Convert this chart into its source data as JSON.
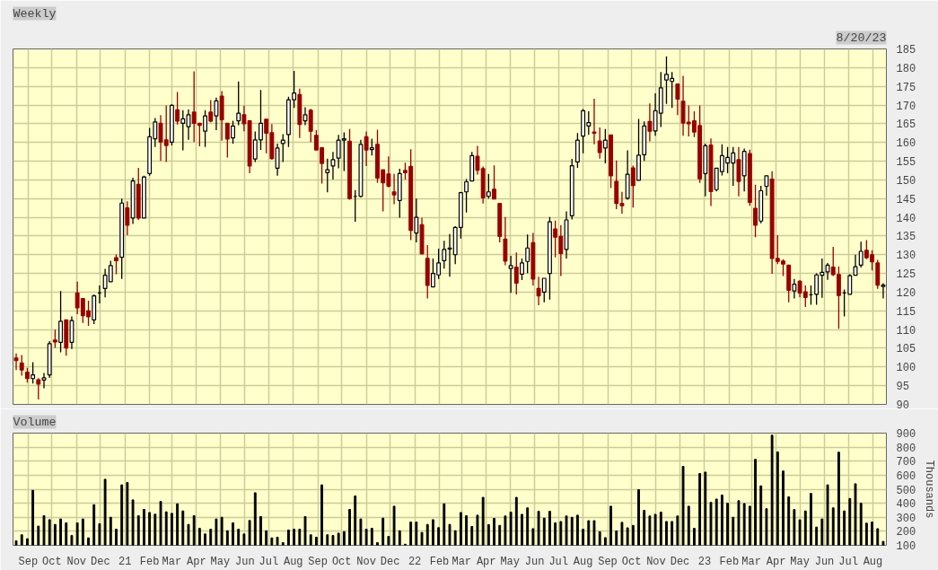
{
  "chart_data": [
    {
      "type": "candlestick",
      "title": "Weekly",
      "annotations": [
        "8/20/23"
      ],
      "x": [
        "2020-08-17",
        "2020-08-24",
        "2020-08-31",
        "2020-09-07",
        "2020-09-14",
        "2020-09-21",
        "2020-09-28",
        "2020-10-05",
        "2020-10-12",
        "2020-10-19",
        "2020-10-26",
        "2020-11-02",
        "2020-11-09",
        "2020-11-16",
        "2020-11-23",
        "2020-11-30",
        "2020-12-07",
        "2020-12-14",
        "2020-12-21",
        "2020-12-28",
        "2021-01-04",
        "2021-01-11",
        "2021-01-18",
        "2021-01-25",
        "2021-02-01",
        "2021-02-08",
        "2021-02-15",
        "2021-02-22",
        "2021-03-01",
        "2021-03-08",
        "2021-03-15",
        "2021-03-22",
        "2021-03-29",
        "2021-04-05",
        "2021-04-12",
        "2021-04-19",
        "2021-04-26",
        "2021-05-03",
        "2021-05-10",
        "2021-05-17",
        "2021-05-24",
        "2021-05-31",
        "2021-06-07",
        "2021-06-14",
        "2021-06-21",
        "2021-06-28",
        "2021-07-05",
        "2021-07-12",
        "2021-07-19",
        "2021-07-26",
        "2021-08-02",
        "2021-08-09",
        "2021-08-16",
        "2021-08-23",
        "2021-08-30",
        "2021-09-06",
        "2021-09-13",
        "2021-09-20",
        "2021-09-27",
        "2021-10-04",
        "2021-10-11",
        "2021-10-18",
        "2021-10-25",
        "2021-11-01",
        "2021-11-08",
        "2021-11-15",
        "2021-11-22",
        "2021-11-29",
        "2021-12-06",
        "2021-12-13",
        "2021-12-20",
        "2021-12-27",
        "2022-01-03",
        "2022-01-10",
        "2022-01-17",
        "2022-01-24",
        "2022-01-31",
        "2022-02-07",
        "2022-02-14",
        "2022-02-21",
        "2022-02-28",
        "2022-03-07",
        "2022-03-14",
        "2022-03-21",
        "2022-03-28",
        "2022-04-04",
        "2022-04-11",
        "2022-04-18",
        "2022-04-25",
        "2022-05-02",
        "2022-05-09",
        "2022-05-16",
        "2022-05-23",
        "2022-05-30",
        "2022-06-06",
        "2022-06-13",
        "2022-06-20",
        "2022-06-27",
        "2022-07-04",
        "2022-07-11",
        "2022-07-18",
        "2022-07-25",
        "2022-08-01",
        "2022-08-08",
        "2022-08-15",
        "2022-08-22",
        "2022-08-29",
        "2022-09-05",
        "2022-09-12",
        "2022-09-19",
        "2022-09-26",
        "2022-10-03",
        "2022-10-10",
        "2022-10-17",
        "2022-10-24",
        "2022-10-31",
        "2022-11-07",
        "2022-11-14",
        "2022-11-21",
        "2022-11-28",
        "2022-12-05",
        "2022-12-12",
        "2022-12-19",
        "2022-12-26",
        "2023-01-02",
        "2023-01-09",
        "2023-01-16",
        "2023-01-23",
        "2023-01-30",
        "2023-02-06",
        "2023-02-13",
        "2023-02-20",
        "2023-02-27",
        "2023-03-06",
        "2023-03-13",
        "2023-03-20",
        "2023-03-27",
        "2023-04-03",
        "2023-04-10",
        "2023-04-17",
        "2023-04-24",
        "2023-05-01",
        "2023-05-08",
        "2023-05-15",
        "2023-05-22",
        "2023-05-29",
        "2023-06-05",
        "2023-06-12",
        "2023-06-19",
        "2023-06-26",
        "2023-07-03",
        "2023-07-10",
        "2023-07-17",
        "2023-07-24",
        "2023-07-31",
        "2023-08-07",
        "2023-08-14"
      ],
      "ohlc": [
        [
          102.4,
          103.6,
          99.2,
          101.7
        ],
        [
          101.1,
          103.2,
          97.7,
          99.2
        ],
        [
          98.6,
          99.8,
          95.8,
          96.9
        ],
        [
          96.9,
          101.3,
          95.6,
          97.9
        ],
        [
          96.6,
          97.0,
          91.3,
          95.4
        ],
        [
          96.5,
          98.4,
          94.3,
          97.1
        ],
        [
          97.9,
          106.9,
          97.1,
          106.2
        ],
        [
          107.2,
          110.0,
          105.1,
          106.7
        ],
        [
          106.6,
          120.3,
          103.9,
          112.2
        ],
        [
          112.6,
          112.6,
          103.0,
          105.1
        ],
        [
          106.6,
          113.5,
          104.8,
          112.4
        ],
        [
          119.8,
          122.8,
          114.1,
          115.8
        ],
        [
          118.3,
          118.3,
          111.8,
          113.7
        ],
        [
          115.0,
          117.7,
          111.0,
          113.4
        ],
        [
          112.6,
          119.4,
          111.5,
          119.0
        ],
        [
          119.8,
          121.8,
          117.0,
          119.8
        ],
        [
          121.0,
          126.2,
          118.6,
          124.5
        ],
        [
          122.8,
          128.4,
          122.8,
          127.1
        ],
        [
          129.2,
          130.1,
          124.8,
          128.4
        ],
        [
          129.3,
          145.0,
          123.5,
          143.8
        ],
        [
          142.5,
          144.3,
          135.2,
          137.9
        ],
        [
          139.8,
          150.6,
          138.2,
          149.7
        ],
        [
          148.8,
          153.2,
          139.3,
          139.8
        ],
        [
          139.8,
          151.1,
          139.8,
          150.8
        ],
        [
          151.7,
          163.9,
          151.1,
          161.5
        ],
        [
          161.0,
          166.5,
          158.8,
          165.5
        ],
        [
          165.1,
          167.3,
          155.1,
          160.1
        ],
        [
          160.7,
          169.9,
          154.8,
          159.2
        ],
        [
          160.1,
          170.2,
          159.2,
          169.9
        ],
        [
          168.7,
          173.5,
          164.8,
          165.7
        ],
        [
          165.1,
          168.6,
          157.9,
          166.3
        ],
        [
          164.2,
          168.8,
          160.7,
          167.4
        ],
        [
          168.1,
          179.0,
          160.1,
          165.1
        ],
        [
          165.1,
          165.1,
          159.0,
          164.6
        ],
        [
          163.0,
          168.6,
          158.8,
          167.1
        ],
        [
          168.1,
          171.3,
          165.4,
          165.7
        ],
        [
          167.1,
          172.0,
          163.3,
          171.1
        ],
        [
          172.4,
          173.7,
          160.5,
          166.1
        ],
        [
          165.1,
          165.1,
          156.0,
          160.9
        ],
        [
          161.2,
          165.8,
          159.7,
          164.4
        ],
        [
          165.8,
          176.3,
          164.6,
          167.8
        ],
        [
          167.4,
          169.8,
          163.0,
          165.0
        ],
        [
          165.8,
          166.0,
          151.8,
          153.7
        ],
        [
          155.6,
          162.9,
          154.8,
          160.7
        ],
        [
          160.7,
          174.0,
          158.0,
          165.1
        ],
        [
          166.2,
          166.2,
          157.1,
          162.5
        ],
        [
          162.6,
          164.9,
          155.4,
          155.7
        ],
        [
          153.1,
          159.7,
          151.1,
          158.5
        ],
        [
          159.7,
          162.2,
          154.8,
          160.6
        ],
        [
          162.1,
          172.2,
          158.8,
          171.4
        ],
        [
          171.4,
          179.1,
          169.2,
          173.2
        ],
        [
          172.8,
          174.4,
          161.2,
          164.8
        ],
        [
          165.8,
          169.4,
          164.6,
          167.4
        ],
        [
          168.6,
          169.0,
          160.1,
          163.0
        ],
        [
          161.9,
          163.3,
          158.0,
          158.0
        ],
        [
          158.6,
          158.8,
          149.0,
          154.4
        ],
        [
          151.9,
          155.7,
          146.7,
          152.7
        ],
        [
          153.7,
          157.5,
          150.1,
          155.4
        ],
        [
          155.8,
          162.0,
          153.1,
          160.6
        ],
        [
          160.6,
          162.7,
          152.4,
          161.0
        ],
        [
          160.3,
          163.6,
          144.7,
          145.0
        ],
        [
          145.6,
          147.3,
          138.8,
          145.6
        ],
        [
          145.6,
          160.7,
          145.3,
          159.5
        ],
        [
          161.5,
          162.9,
          153.7,
          158.0
        ],
        [
          158.1,
          161.0,
          156.5,
          158.6
        ],
        [
          159.5,
          163.4,
          149.2,
          150.5
        ],
        [
          152.7,
          152.7,
          141.6,
          149.2
        ],
        [
          151.6,
          156.3,
          148.0,
          148.3
        ],
        [
          146.8,
          151.6,
          143.5,
          146.0
        ],
        [
          144.5,
          153.0,
          139.9,
          151.7
        ],
        [
          152.5,
          154.6,
          150.1,
          151.9
        ],
        [
          153.6,
          158.2,
          133.9,
          136.5
        ],
        [
          135.8,
          145.0,
          133.3,
          140.0
        ],
        [
          138.0,
          139.9,
          130.2,
          130.2
        ],
        [
          129.0,
          132.6,
          118.3,
          121.8
        ],
        [
          121.4,
          129.0,
          121.4,
          125.0
        ],
        [
          124.6,
          131.6,
          123.5,
          127.8
        ],
        [
          128.4,
          133.7,
          126.3,
          131.4
        ],
        [
          131.5,
          135.5,
          124.1,
          131.8
        ],
        [
          130.0,
          137.6,
          127.5,
          137.3
        ],
        [
          137.3,
          146.8,
          134.3,
          146.6
        ],
        [
          146.8,
          150.2,
          141.3,
          149.5
        ],
        [
          149.7,
          157.5,
          149.6,
          156.5
        ],
        [
          156.3,
          159.1,
          151.4,
          152.6
        ],
        [
          153.0,
          153.6,
          143.7,
          145.2
        ],
        [
          145.6,
          151.6,
          145.0,
          146.8
        ],
        [
          147.5,
          153.9,
          144.9,
          144.9
        ],
        [
          143.7,
          143.7,
          133.3,
          134.9
        ],
        [
          134.2,
          140.1,
          127.2,
          128.3
        ],
        [
          126.3,
          129.7,
          119.8,
          127.1
        ],
        [
          126.7,
          130.6,
          119.4,
          122.4
        ],
        [
          124.8,
          129.0,
          123.2,
          127.8
        ],
        [
          128.2,
          135.4,
          125.0,
          131.8
        ],
        [
          133.2,
          135.8,
          121.8,
          123.5
        ],
        [
          121.0,
          124.1,
          116.5,
          119.0
        ],
        [
          120.0,
          123.7,
          117.3,
          123.7
        ],
        [
          125.0,
          140.1,
          118.0,
          138.8
        ],
        [
          136.9,
          139.1,
          129.3,
          134.7
        ],
        [
          134.9,
          137.9,
          124.3,
          130.3
        ],
        [
          131.4,
          141.6,
          129.0,
          139.3
        ],
        [
          140.4,
          155.6,
          139.4,
          153.8
        ],
        [
          154.8,
          162.5,
          153.2,
          160.6
        ],
        [
          161.7,
          168.9,
          157.1,
          168.5
        ],
        [
          164.4,
          168.3,
          162.0,
          165.3
        ],
        [
          162.8,
          171.7,
          159.5,
          162.5
        ],
        [
          160.4,
          164.0,
          155.7,
          157.3
        ],
        [
          158.5,
          163.6,
          154.4,
          160.6
        ],
        [
          162.0,
          162.0,
          147.8,
          151.1
        ],
        [
          149.6,
          155.2,
          142.2,
          143.7
        ],
        [
          143.7,
          146.8,
          141.0,
          143.1
        ],
        [
          145.1,
          157.9,
          144.7,
          151.5
        ],
        [
          153.2,
          153.8,
          142.6,
          148.5
        ],
        [
          149.9,
          166.3,
          149.9,
          156.6
        ],
        [
          156.7,
          165.6,
          155.1,
          164.4
        ],
        [
          165.6,
          170.4,
          160.3,
          163.0
        ],
        [
          163.1,
          173.1,
          161.8,
          168.5
        ],
        [
          167.8,
          178.8,
          164.1,
          174.6
        ],
        [
          176.7,
          183.0,
          170.3,
          178.2
        ],
        [
          176.3,
          178.8,
          169.2,
          177.1
        ],
        [
          175.6,
          175.6,
          167.3,
          171.6
        ],
        [
          171.0,
          177.8,
          161.8,
          165.2
        ],
        [
          165.4,
          169.9,
          161.6,
          165.0
        ],
        [
          165.8,
          168.3,
          161.4,
          162.8
        ],
        [
          164.5,
          169.9,
          149.2,
          150.3
        ],
        [
          151.7,
          159.7,
          145.6,
          159.1
        ],
        [
          159.3,
          161.1,
          143.0,
          146.9
        ],
        [
          147.4,
          153.1,
          146.9,
          153.1
        ],
        [
          152.2,
          159.5,
          151.2,
          156.5
        ],
        [
          154.5,
          158.8,
          151.8,
          156.0
        ],
        [
          154.5,
          158.8,
          148.4,
          157.2
        ],
        [
          155.4,
          158.8,
          145.6,
          149.6
        ],
        [
          151.1,
          158.4,
          146.9,
          157.6
        ],
        [
          157.0,
          158.1,
          143.1,
          144.0
        ],
        [
          142.4,
          148.7,
          134.7,
          137.9
        ],
        [
          139.0,
          148.4,
          138.4,
          147.1
        ],
        [
          148.3,
          151.1,
          145.8,
          151.1
        ],
        [
          150.2,
          152.3,
          124.9,
          129.0
        ],
        [
          129.0,
          135.2,
          127.5,
          128.2
        ],
        [
          128.3,
          128.8,
          124.3,
          127.5
        ],
        [
          127.2,
          127.2,
          117.3,
          120.5
        ],
        [
          120.3,
          123.5,
          118.3,
          122.1
        ],
        [
          122.9,
          123.2,
          118.6,
          119.8
        ],
        [
          120.1,
          121.8,
          116.0,
          118.6
        ],
        [
          119.3,
          121.8,
          116.6,
          119.3
        ],
        [
          119.4,
          125.0,
          116.6,
          124.6
        ],
        [
          124.5,
          129.0,
          118.5,
          125.3
        ],
        [
          125.4,
          127.8,
          123.3,
          127.2
        ],
        [
          126.7,
          132.1,
          124.3,
          124.7
        ],
        [
          124.7,
          126.9,
          110.2,
          119.1
        ],
        [
          119.8,
          120.7,
          113.5,
          119.8
        ],
        [
          119.4,
          124.8,
          119.4,
          124.4
        ],
        [
          124.5,
          130.0,
          124.5,
          126.8
        ],
        [
          127.2,
          133.5,
          126.6,
          130.9
        ],
        [
          131.2,
          133.9,
          128.8,
          129.2
        ],
        [
          130.0,
          131.2,
          125.8,
          128.1
        ],
        [
          127.8,
          128.6,
          120.9,
          121.9
        ],
        [
          121.5,
          122.4,
          118.3,
          121.9
        ]
      ],
      "xlim": [
        "2020-08-13",
        "2023-08-18"
      ],
      "xticks": [
        {
          "value": "2020-09-01",
          "label": null
        },
        {
          "value": "2020-10-01",
          "label": null
        },
        {
          "value": "2020-11-01",
          "label": null
        },
        {
          "value": "2020-12-01",
          "label": null
        },
        {
          "value": "2021-01-01",
          "label": null
        },
        {
          "value": "2021-02-01",
          "label": null
        },
        {
          "value": "2021-03-01",
          "label": null
        },
        {
          "value": "2021-04-01",
          "label": null
        },
        {
          "value": "2021-05-01",
          "label": null
        },
        {
          "value": "2021-06-01",
          "label": null
        },
        {
          "value": "2021-07-01",
          "label": null
        },
        {
          "value": "2021-08-01",
          "label": null
        },
        {
          "value": "2021-09-01",
          "label": null
        },
        {
          "value": "2021-10-01",
          "label": null
        },
        {
          "value": "2021-11-01",
          "label": null
        },
        {
          "value": "2021-12-01",
          "label": null
        },
        {
          "value": "2022-01-01",
          "label": null
        },
        {
          "value": "2022-02-01",
          "label": null
        },
        {
          "value": "2022-03-01",
          "label": null
        },
        {
          "value": "2022-04-01",
          "label": null
        },
        {
          "value": "2022-05-01",
          "label": null
        },
        {
          "value": "2022-06-01",
          "label": null
        },
        {
          "value": "2022-07-01",
          "label": null
        },
        {
          "value": "2022-08-01",
          "label": null
        },
        {
          "value": "2022-09-01",
          "label": null
        },
        {
          "value": "2022-10-01",
          "label": null
        },
        {
          "value": "2022-11-01",
          "label": null
        },
        {
          "value": "2022-12-01",
          "label": null
        },
        {
          "value": "2023-01-01",
          "label": null
        },
        {
          "value": "2023-02-01",
          "label": null
        },
        {
          "value": "2023-03-01",
          "label": null
        },
        {
          "value": "2023-04-01",
          "label": null
        },
        {
          "value": "2023-05-01",
          "label": null
        },
        {
          "value": "2023-06-01",
          "label": null
        },
        {
          "value": "2023-07-01",
          "label": null
        },
        {
          "value": "2023-08-01",
          "label": null
        }
      ],
      "ylim": [
        90,
        185
      ],
      "yticks": [
        90,
        95,
        100,
        105,
        110,
        115,
        120,
        125,
        130,
        135,
        140,
        145,
        150,
        155,
        160,
        165,
        170,
        175,
        180,
        185
      ],
      "grid": true,
      "tick_labels": "y"
    },
    {
      "type": "bar",
      "title": "Volume",
      "ylabel": "Thousands",
      "color": "#000000",
      "x": [
        "2020-08-17",
        "2020-08-24",
        "2020-08-31",
        "2020-09-07",
        "2020-09-14",
        "2020-09-21",
        "2020-09-28",
        "2020-10-05",
        "2020-10-12",
        "2020-10-19",
        "2020-10-26",
        "2020-11-02",
        "2020-11-09",
        "2020-11-16",
        "2020-11-23",
        "2020-11-30",
        "2020-12-07",
        "2020-12-14",
        "2020-12-21",
        "2020-12-28",
        "2021-01-04",
        "2021-01-11",
        "2021-01-18",
        "2021-01-25",
        "2021-02-01",
        "2021-02-08",
        "2021-02-15",
        "2021-02-22",
        "2021-03-01",
        "2021-03-08",
        "2021-03-15",
        "2021-03-22",
        "2021-03-29",
        "2021-04-05",
        "2021-04-12",
        "2021-04-19",
        "2021-04-26",
        "2021-05-03",
        "2021-05-10",
        "2021-05-17",
        "2021-05-24",
        "2021-05-31",
        "2021-06-07",
        "2021-06-14",
        "2021-06-21",
        "2021-06-28",
        "2021-07-05",
        "2021-07-12",
        "2021-07-19",
        "2021-07-26",
        "2021-08-02",
        "2021-08-09",
        "2021-08-16",
        "2021-08-23",
        "2021-08-30",
        "2021-09-06",
        "2021-09-13",
        "2021-09-20",
        "2021-09-27",
        "2021-10-04",
        "2021-10-11",
        "2021-10-18",
        "2021-10-25",
        "2021-11-01",
        "2021-11-08",
        "2021-11-15",
        "2021-11-22",
        "2021-11-29",
        "2021-12-06",
        "2021-12-13",
        "2021-12-20",
        "2021-12-27",
        "2022-01-03",
        "2022-01-10",
        "2022-01-17",
        "2022-01-24",
        "2022-01-31",
        "2022-02-07",
        "2022-02-14",
        "2022-02-21",
        "2022-02-28",
        "2022-03-07",
        "2022-03-14",
        "2022-03-21",
        "2022-03-28",
        "2022-04-04",
        "2022-04-11",
        "2022-04-18",
        "2022-04-25",
        "2022-05-02",
        "2022-05-09",
        "2022-05-16",
        "2022-05-23",
        "2022-05-30",
        "2022-06-06",
        "2022-06-13",
        "2022-06-20",
        "2022-06-27",
        "2022-07-04",
        "2022-07-11",
        "2022-07-18",
        "2022-07-25",
        "2022-08-01",
        "2022-08-08",
        "2022-08-15",
        "2022-08-22",
        "2022-08-29",
        "2022-09-05",
        "2022-09-12",
        "2022-09-19",
        "2022-09-26",
        "2022-10-03",
        "2022-10-10",
        "2022-10-17",
        "2022-10-24",
        "2022-10-31",
        "2022-11-07",
        "2022-11-14",
        "2022-11-21",
        "2022-11-28",
        "2022-12-05",
        "2022-12-12",
        "2022-12-19",
        "2022-12-26",
        "2023-01-02",
        "2023-01-09",
        "2023-01-16",
        "2023-01-23",
        "2023-01-30",
        "2023-02-06",
        "2023-02-13",
        "2023-02-20",
        "2023-02-27",
        "2023-03-06",
        "2023-03-13",
        "2023-03-20",
        "2023-03-27",
        "2023-04-03",
        "2023-04-10",
        "2023-04-17",
        "2023-04-24",
        "2023-05-01",
        "2023-05-08",
        "2023-05-15",
        "2023-05-22",
        "2023-05-29",
        "2023-06-05",
        "2023-06-12",
        "2023-06-19",
        "2023-06-26",
        "2023-07-03",
        "2023-07-10",
        "2023-07-17",
        "2023-07-24",
        "2023-07-31",
        "2023-08-07",
        "2023-08-14"
      ],
      "values": [
        132,
        175,
        147,
        492,
        237,
        311,
        283,
        249,
        288,
        260,
        170,
        260,
        288,
        153,
        390,
        254,
        571,
        300,
        215,
        531,
        548,
        424,
        311,
        356,
        334,
        322,
        413,
        339,
        328,
        396,
        345,
        249,
        311,
        221,
        181,
        215,
        288,
        300,
        204,
        260,
        215,
        181,
        277,
        475,
        305,
        204,
        153,
        158,
        119,
        209,
        215,
        215,
        305,
        175,
        158,
        531,
        175,
        170,
        187,
        198,
        356,
        452,
        288,
        215,
        221,
        119,
        294,
        164,
        379,
        204,
        108,
        266,
        266,
        192,
        249,
        283,
        226,
        396,
        249,
        204,
        334,
        311,
        234,
        315,
        442,
        248,
        292,
        242,
        309,
        337,
        442,
        321,
        367,
        219,
        343,
        294,
        343,
        260,
        270,
        309,
        300,
        315,
        215,
        276,
        276,
        197,
        155,
        379,
        203,
        264,
        225,
        242,
        497,
        349,
        309,
        321,
        337,
        270,
        270,
        309,
        663,
        379,
        221,
        612,
        622,
        406,
        430,
        458,
        400,
        300,
        418,
        398,
        379,
        713,
        524,
        361,
        885,
        766,
        630,
        446,
        355,
        282,
        345,
        470,
        230,
        288,
        531,
        367,
        764,
        345,
        434,
        539,
        400,
        258,
        266,
        219,
        128
      ],
      "xlim": [
        "2020-08-13",
        "2023-08-18"
      ],
      "xticks": [
        {
          "value": "2020-09-01",
          "label": "Sep"
        },
        {
          "value": "2020-10-01",
          "label": "Oct"
        },
        {
          "value": "2020-11-01",
          "label": "Nov"
        },
        {
          "value": "2020-12-01",
          "label": "Dec"
        },
        {
          "value": "2021-01-01",
          "label": "21"
        },
        {
          "value": "2021-02-01",
          "label": "Feb"
        },
        {
          "value": "2021-03-01",
          "label": "Mar"
        },
        {
          "value": "2021-04-01",
          "label": "Apr"
        },
        {
          "value": "2021-05-01",
          "label": "May"
        },
        {
          "value": "2021-06-01",
          "label": "Jun"
        },
        {
          "value": "2021-07-01",
          "label": "Jul"
        },
        {
          "value": "2021-08-01",
          "label": "Aug"
        },
        {
          "value": "2021-09-01",
          "label": "Sep"
        },
        {
          "value": "2021-10-01",
          "label": "Oct"
        },
        {
          "value": "2021-11-01",
          "label": "Nov"
        },
        {
          "value": "2021-12-01",
          "label": "Dec"
        },
        {
          "value": "2022-01-01",
          "label": "22"
        },
        {
          "value": "2022-02-01",
          "label": "Feb"
        },
        {
          "value": "2022-03-01",
          "label": "Mar"
        },
        {
          "value": "2022-04-01",
          "label": "Apr"
        },
        {
          "value": "2022-05-01",
          "label": "May"
        },
        {
          "value": "2022-06-01",
          "label": "Jun"
        },
        {
          "value": "2022-07-01",
          "label": "Jul"
        },
        {
          "value": "2022-08-01",
          "label": "Aug"
        },
        {
          "value": "2022-09-01",
          "label": "Sep"
        },
        {
          "value": "2022-10-01",
          "label": "Oct"
        },
        {
          "value": "2022-11-01",
          "label": "Nov"
        },
        {
          "value": "2022-12-01",
          "label": "Dec"
        },
        {
          "value": "2023-01-01",
          "label": "23"
        },
        {
          "value": "2023-02-01",
          "label": "Feb"
        },
        {
          "value": "2023-03-01",
          "label": "Mar"
        },
        {
          "value": "2023-04-01",
          "label": "Apr"
        },
        {
          "value": "2023-05-01",
          "label": "May"
        },
        {
          "value": "2023-06-01",
          "label": "Jun"
        },
        {
          "value": "2023-07-01",
          "label": "Jul"
        },
        {
          "value": "2023-08-01",
          "label": "Aug"
        }
      ],
      "ylim": [
        100,
        900
      ],
      "yticks": [
        100,
        200,
        300,
        400,
        500,
        600,
        700,
        800,
        900
      ],
      "grid": true
    }
  ]
}
